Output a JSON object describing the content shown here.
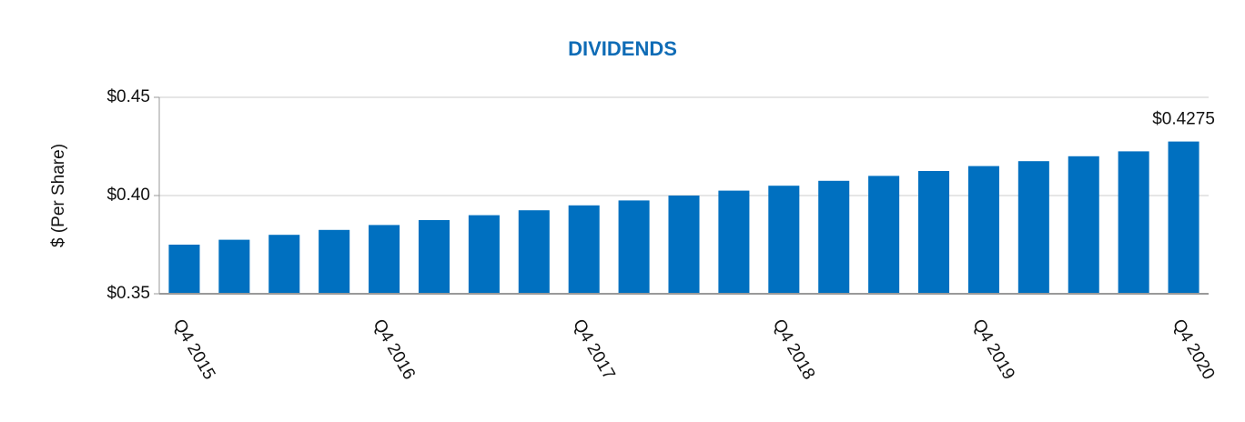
{
  "chart_data": {
    "type": "bar",
    "title": "DIVIDENDS",
    "y_label": "$ (Per Share)",
    "categories": [
      "Q4 2015",
      null,
      null,
      null,
      "Q4 2016",
      null,
      null,
      null,
      "Q4 2017",
      null,
      null,
      null,
      "Q4 2018",
      null,
      null,
      null,
      "Q4 2019",
      null,
      null,
      null,
      "Q4 2020"
    ],
    "values": [
      0.375,
      0.3775,
      0.38,
      0.3825,
      0.385,
      0.3875,
      0.39,
      0.3925,
      0.395,
      0.3975,
      0.4,
      0.4025,
      0.405,
      0.4075,
      0.41,
      0.4125,
      0.415,
      0.4175,
      0.42,
      0.4225,
      0.4275
    ],
    "value_labels": [
      null,
      null,
      null,
      null,
      null,
      null,
      null,
      null,
      null,
      null,
      null,
      null,
      null,
      null,
      null,
      null,
      null,
      null,
      null,
      null,
      "$0.4275"
    ],
    "color": "#0070c0",
    "ylim": [
      0.35,
      0.45
    ],
    "yticks": [
      {
        "value": 0.35,
        "label": "$0.35"
      },
      {
        "value": 0.4,
        "label": "$0.40"
      },
      {
        "value": 0.45,
        "label": "$0.45"
      }
    ],
    "grid": true
  }
}
